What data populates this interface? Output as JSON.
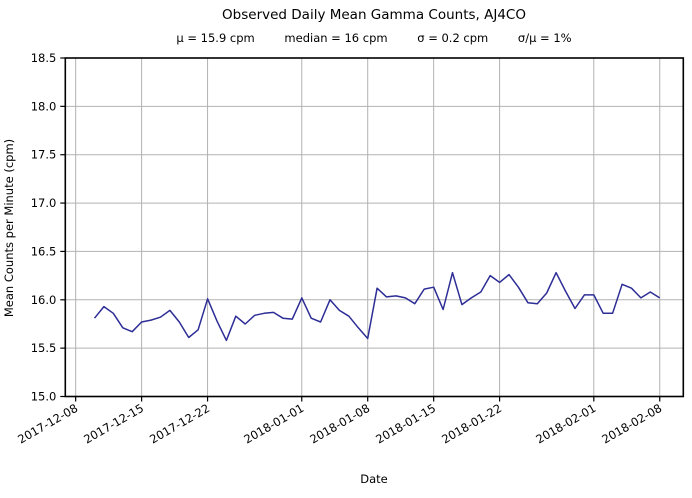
{
  "chart_data": {
    "type": "line",
    "title": "Observed Daily Mean Gamma Counts, AJ4CO",
    "stats": {
      "mu": "μ = 15.9 cpm",
      "median": "median = 16 cpm",
      "sigma": "σ = 0.2 cpm",
      "sigma_over_mu": "σ/μ = 1%"
    },
    "xlabel": "Date",
    "ylabel": "Mean Counts per Minute (cpm)",
    "ylim": [
      15.0,
      18.5
    ],
    "yticks": [
      15.0,
      15.5,
      16.0,
      16.5,
      17.0,
      17.5,
      18.0,
      18.5
    ],
    "xticks": [
      "2017-12-08",
      "2017-12-15",
      "2017-12-22",
      "2018-01-01",
      "2018-01-08",
      "2018-01-15",
      "2018-01-22",
      "2018-02-01",
      "2018-02-08"
    ],
    "xtick_rotation_deg": 30,
    "xlim_days_from_first_tick": [
      -1.1,
      64.5
    ],
    "grid": true,
    "legend": "none",
    "series": [
      {
        "name": "daily-mean-gamma-counts",
        "start_date": "2017-12-10",
        "step_days": 1,
        "end_date": "2018-02-08",
        "values": [
          15.81,
          15.93,
          15.86,
          15.71,
          15.67,
          15.77,
          15.79,
          15.82,
          15.89,
          15.77,
          15.61,
          15.69,
          16.01,
          15.78,
          15.58,
          15.83,
          15.75,
          15.84,
          15.86,
          15.87,
          15.81,
          15.8,
          16.02,
          15.81,
          15.77,
          16.0,
          15.89,
          15.83,
          15.71,
          15.6,
          16.12,
          16.03,
          16.04,
          16.02,
          15.96,
          16.11,
          16.13,
          15.9,
          16.28,
          15.95,
          16.02,
          16.08,
          16.25,
          16.18,
          16.26,
          16.13,
          15.97,
          15.96,
          16.07,
          16.28,
          16.09,
          15.91,
          16.05,
          16.05,
          15.86,
          15.86,
          16.16,
          16.12,
          16.02,
          16.08,
          16.02
        ]
      }
    ],
    "colors": {
      "line": "#2d2d96",
      "grid": "#b2b2b2",
      "axis": "#000000",
      "text": "#000000",
      "background": "#ffffff"
    }
  }
}
